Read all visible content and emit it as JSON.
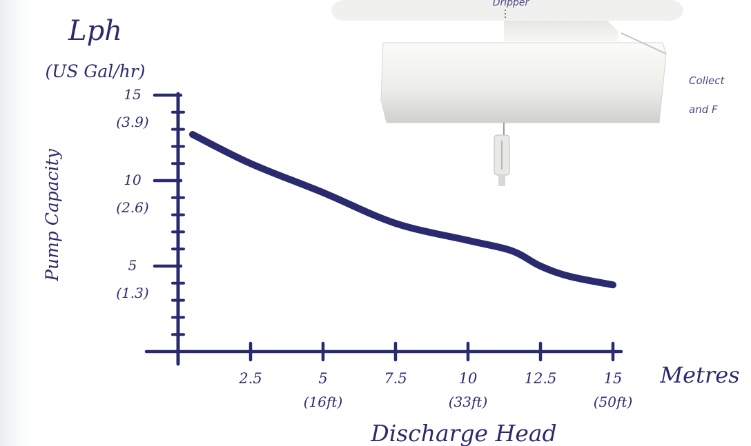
{
  "image_text": {
    "top_label": "Dripper",
    "side_label_line1": "Collect",
    "side_label_line2": "and F"
  },
  "colors": {
    "ink": "#2a2a6e",
    "device_light": "#f2f2f0",
    "device_shadow": "#c9c9c6"
  },
  "chart_data": {
    "type": "line",
    "title": "",
    "ylabel": "Pump Capacity",
    "y_unit_line1": "Lph",
    "y_unit_line2": "(US Gal/hr)",
    "xlabel": "Discharge Head",
    "x_unit": "Metres",
    "xlim": [
      0,
      15
    ],
    "ylim": [
      0,
      15
    ],
    "x_ticks": [
      {
        "value": 2.5,
        "label": "2.5",
        "sub": ""
      },
      {
        "value": 5,
        "label": "5",
        "sub": "(16ft)"
      },
      {
        "value": 7.5,
        "label": "7.5",
        "sub": ""
      },
      {
        "value": 10,
        "label": "10",
        "sub": "(33ft)"
      },
      {
        "value": 12.5,
        "label": "12.5",
        "sub": ""
      },
      {
        "value": 15,
        "label": "15",
        "sub": "(50ft)"
      }
    ],
    "y_ticks": [
      {
        "value": 5,
        "label": "5",
        "sub": "(1.3)"
      },
      {
        "value": 10,
        "label": "10",
        "sub": "(2.6)"
      },
      {
        "value": 15,
        "label": "15",
        "sub": "(3.9)"
      }
    ],
    "series": [
      {
        "x": [
          0.5,
          2.5,
          5,
          7.5,
          10,
          11.5,
          12.5,
          13.5,
          15
        ],
        "y": [
          12.7,
          11.0,
          9.3,
          7.5,
          6.5,
          5.9,
          5.0,
          4.4,
          3.9
        ]
      }
    ],
    "grid": false,
    "legend": "none"
  }
}
